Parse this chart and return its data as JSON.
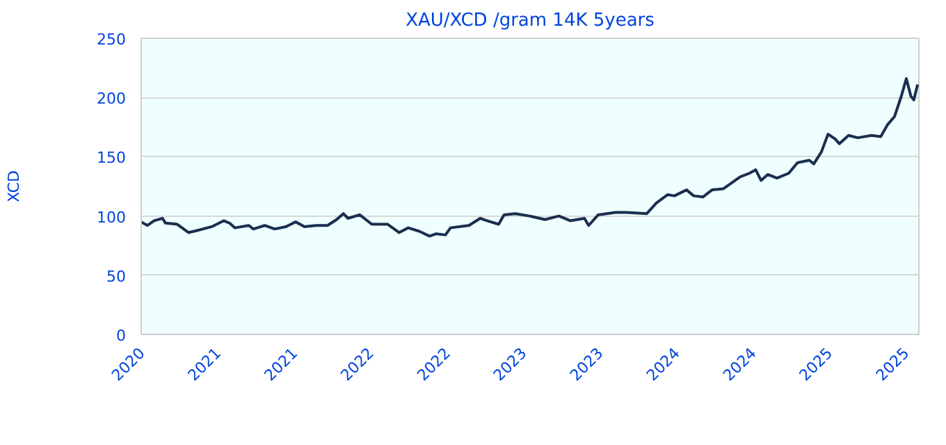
{
  "chart_data": {
    "type": "line",
    "title": "XAU/XCD /gram 14K 5years",
    "ylabel": "XCD",
    "xlim": [
      "2020-10-20",
      "2025-11-21"
    ],
    "ylim": [
      0,
      250
    ],
    "xticks": [
      {
        "value": "2020-10-20",
        "label": "2020"
      },
      {
        "value": "2021-04-20",
        "label": "2021"
      },
      {
        "value": "2021-10-20",
        "label": "2021"
      },
      {
        "value": "2022-04-20",
        "label": "2022"
      },
      {
        "value": "2022-10-20",
        "label": "2022"
      },
      {
        "value": "2023-04-20",
        "label": "2023"
      },
      {
        "value": "2023-10-20",
        "label": "2023"
      },
      {
        "value": "2024-04-20",
        "label": "2024"
      },
      {
        "value": "2024-10-20",
        "label": "2024"
      },
      {
        "value": "2025-04-20",
        "label": "2025"
      },
      {
        "value": "2025-10-20",
        "label": "2025"
      }
    ],
    "yticks": [
      0,
      50,
      100,
      150,
      200,
      250
    ],
    "grid": "y",
    "marker": "none",
    "line_style": "solid",
    "series": [
      {
        "color": "#1a2e4f",
        "x": [
          "2020-10-20",
          "2020-11-04",
          "2020-11-20",
          "2020-12-10",
          "2020-12-17",
          "2021-01-14",
          "2021-02-10",
          "2021-03-06",
          "2021-04-07",
          "2021-05-05",
          "2021-05-19",
          "2021-06-01",
          "2021-07-04",
          "2021-07-15",
          "2021-08-11",
          "2021-09-04",
          "2021-10-01",
          "2021-10-24",
          "2021-11-14",
          "2021-12-12",
          "2022-01-08",
          "2022-01-30",
          "2022-02-15",
          "2022-02-26",
          "2022-03-26",
          "2022-04-24",
          "2022-06-01",
          "2022-06-28",
          "2022-07-20",
          "2022-08-16",
          "2022-09-09",
          "2022-09-25",
          "2022-10-17",
          "2022-10-29",
          "2022-12-12",
          "2023-01-08",
          "2023-01-24",
          "2023-02-21",
          "2023-03-06",
          "2023-04-02",
          "2023-05-05",
          "2023-06-12",
          "2023-07-15",
          "2023-08-11",
          "2023-09-14",
          "2023-09-24",
          "2023-10-17",
          "2023-11-27",
          "2023-12-23",
          "2024-02-10",
          "2024-03-04",
          "2024-03-31",
          "2024-04-16",
          "2024-05-15",
          "2024-06-01",
          "2024-06-23",
          "2024-07-15",
          "2024-08-11",
          "2024-08-27",
          "2024-09-20",
          "2024-10-12",
          "2024-10-27",
          "2024-11-09",
          "2024-11-25",
          "2024-12-17",
          "2025-01-14",
          "2025-02-04",
          "2025-03-04",
          "2025-03-15",
          "2025-04-02",
          "2025-04-18",
          "2025-05-05",
          "2025-05-15",
          "2025-06-06",
          "2025-06-28",
          "2025-07-31",
          "2025-08-22",
          "2025-09-07",
          "2025-09-24",
          "2025-10-10",
          "2025-10-22",
          "2025-11-02",
          "2025-11-09",
          "2025-11-18"
        ],
        "values": [
          95,
          92,
          96,
          98,
          94,
          93,
          86,
          88,
          91,
          96,
          94,
          90,
          92,
          89,
          92,
          89,
          91,
          95,
          91,
          92,
          92,
          97,
          102,
          98,
          101,
          93,
          93,
          86,
          90,
          87,
          83,
          85,
          84,
          90,
          92,
          98,
          96,
          93,
          101,
          102,
          100,
          97,
          100,
          96,
          98,
          92,
          101,
          103,
          103,
          102,
          111,
          118,
          117,
          122,
          117,
          116,
          122,
          123,
          127,
          133,
          136,
          139,
          130,
          135,
          132,
          136,
          145,
          147,
          144,
          154,
          169,
          165,
          161,
          168,
          166,
          168,
          167,
          177,
          184,
          201,
          216,
          201,
          198,
          211
        ]
      }
    ]
  }
}
